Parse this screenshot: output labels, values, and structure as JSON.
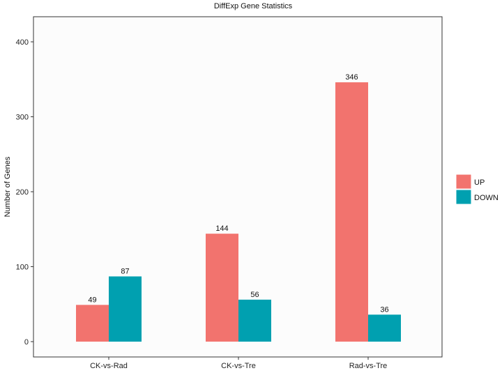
{
  "chart_data": {
    "type": "bar",
    "title": "DiffExp Gene Statistics",
    "xlabel": "",
    "ylabel": "Number of Genes",
    "categories": [
      "CK-vs-Rad",
      "CK-vs-Tre",
      "Rad-vs-Tre"
    ],
    "series": [
      {
        "name": "UP",
        "values": [
          49,
          144,
          346
        ],
        "color": "#F2736E"
      },
      {
        "name": "DOWN",
        "values": [
          87,
          56,
          36
        ],
        "color": "#00A0B0"
      }
    ],
    "ylim": [
      0,
      440
    ],
    "yticks": [
      0,
      100,
      200,
      300,
      400
    ],
    "grid": false,
    "legend_position": "right",
    "panel_background": "#FCFCFC",
    "panel_border": "#333333"
  }
}
